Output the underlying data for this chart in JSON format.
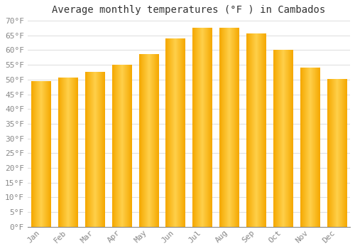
{
  "title": "Average monthly temperatures (°F ) in Cambados",
  "months": [
    "Jan",
    "Feb",
    "Mar",
    "Apr",
    "May",
    "Jun",
    "Jul",
    "Aug",
    "Sep",
    "Oct",
    "Nov",
    "Dec"
  ],
  "values": [
    49.5,
    50.5,
    52.5,
    55.0,
    58.5,
    64.0,
    67.5,
    67.5,
    65.5,
    60.0,
    54.0,
    50.0
  ],
  "bar_color_light": "#FFD04A",
  "bar_color_dark": "#F5A800",
  "background_color": "#FFFFFF",
  "grid_color": "#E0E0E0",
  "ylim": [
    0,
    70
  ],
  "yticks": [
    0,
    5,
    10,
    15,
    20,
    25,
    30,
    35,
    40,
    45,
    50,
    55,
    60,
    65,
    70
  ],
  "title_fontsize": 10,
  "tick_fontsize": 8,
  "tick_color": "#888888",
  "title_color": "#333333",
  "font_family": "monospace"
}
